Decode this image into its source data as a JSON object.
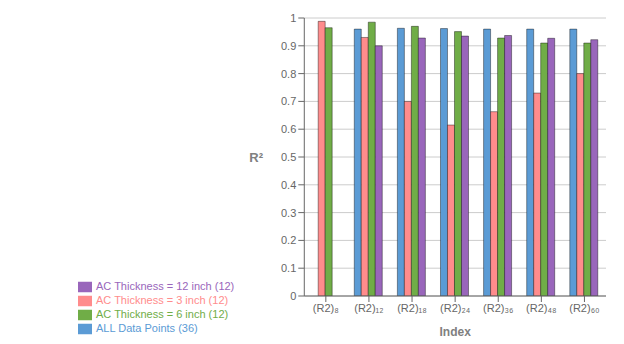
{
  "chart_data": {
    "type": "bar",
    "categories": [
      "(R2)₈",
      "(R2)₁₂",
      "(R2)₁₈",
      "(R2)₂₄",
      "(R2)₃₆",
      "(R2)₄₈",
      "(R2)₆₀"
    ],
    "series": [
      {
        "name": "ALL Data Points (36)",
        "color": "#5B9BD5",
        "values": [
          null,
          0.96,
          0.963,
          0.962,
          0.96,
          0.96,
          0.96
        ]
      },
      {
        "name": "AC Thickness = 3 inch (12)",
        "color": "#FF8C8C",
        "values": [
          0.988,
          0.93,
          0.7,
          0.615,
          0.663,
          0.73,
          0.8
        ]
      },
      {
        "name": "AC Thickness = 6 inch (12)",
        "color": "#70AD47",
        "values": [
          0.965,
          0.985,
          0.97,
          0.951,
          0.928,
          0.91,
          0.91
        ]
      },
      {
        "name": "AC Thickness = 12 inch (12)",
        "color": "#9966BB",
        "values": [
          null,
          0.9,
          0.928,
          0.935,
          0.937,
          0.927,
          0.922
        ]
      }
    ],
    "x_label": "Index",
    "y_label": "R²",
    "ylim": [
      0,
      1.0
    ],
    "yticks": [
      0,
      0.1,
      0.2,
      0.3,
      0.4,
      0.5,
      0.6,
      0.7,
      0.8,
      0.9,
      1
    ],
    "grid": true,
    "legend": "lower left"
  }
}
